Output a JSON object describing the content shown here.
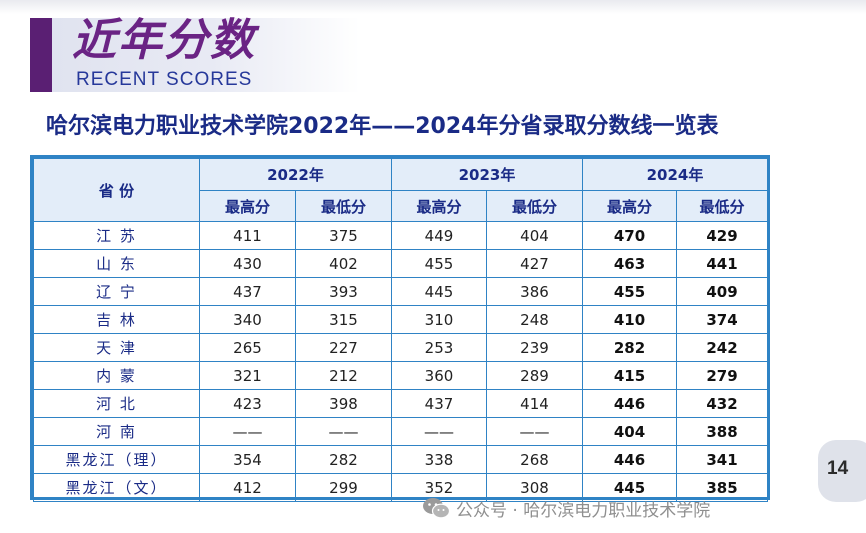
{
  "header": {
    "title": "近年分数",
    "subtitle": "RECENT SCORES"
  },
  "table_title": "哈尔滨电力职业技术学院2022年——2024年分省录取分数线一览表",
  "table": {
    "province_header": "省 份",
    "years": [
      "2022年",
      "2023年",
      "2024年"
    ],
    "max_label": "最高分",
    "min_label": "最低分",
    "rows": [
      {
        "province": "江 苏",
        "v": [
          "411",
          "375",
          "449",
          "404",
          "470",
          "429"
        ]
      },
      {
        "province": "山 东",
        "v": [
          "430",
          "402",
          "455",
          "427",
          "463",
          "441"
        ]
      },
      {
        "province": "辽 宁",
        "v": [
          "437",
          "393",
          "445",
          "386",
          "455",
          "409"
        ]
      },
      {
        "province": "吉 林",
        "v": [
          "340",
          "315",
          "310",
          "248",
          "410",
          "374"
        ]
      },
      {
        "province": "天 津",
        "v": [
          "265",
          "227",
          "253",
          "239",
          "282",
          "242"
        ]
      },
      {
        "province": "内 蒙",
        "v": [
          "321",
          "212",
          "360",
          "289",
          "415",
          "279"
        ]
      },
      {
        "province": "河 北",
        "v": [
          "423",
          "398",
          "437",
          "414",
          "446",
          "432"
        ]
      },
      {
        "province": "河 南",
        "v": [
          "——",
          "——",
          "——",
          "——",
          "404",
          "388"
        ]
      },
      {
        "province": "黑龙江（理）",
        "v": [
          "354",
          "282",
          "338",
          "268",
          "446",
          "341"
        ]
      },
      {
        "province": "黑龙江（文）",
        "v": [
          "412",
          "299",
          "352",
          "308",
          "445",
          "385"
        ]
      }
    ]
  },
  "page_number": "14",
  "watermark": "公众号 · 哈尔滨电力职业技术学院",
  "colors": {
    "accent_purple": "#6a2384",
    "title_blue": "#1a2b86",
    "table_border": "#2f83c5",
    "header_fill": "#e3edf9"
  },
  "icons": {
    "watermark": "wechat-icon"
  }
}
